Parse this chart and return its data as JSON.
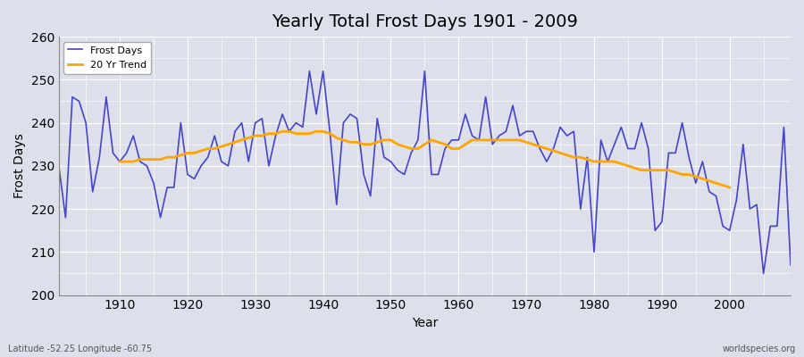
{
  "title": "Yearly Total Frost Days 1901 - 2009",
  "xlabel": "Year",
  "ylabel": "Frost Days",
  "subtitle": "Latitude -52.25 Longitude -60.75",
  "watermark": "worldspecies.org",
  "ylim": [
    200,
    260
  ],
  "xlim": [
    1901,
    2009
  ],
  "legend_labels": [
    "Frost Days",
    "20 Yr Trend"
  ],
  "frost_color": "#4444cc",
  "trend_color": "#FFA500",
  "background_color": "#dde0ea",
  "grid_color": "#ffffff",
  "years": [
    1901,
    1902,
    1903,
    1904,
    1905,
    1906,
    1907,
    1908,
    1909,
    1910,
    1911,
    1912,
    1913,
    1914,
    1915,
    1916,
    1917,
    1918,
    1919,
    1920,
    1921,
    1922,
    1923,
    1924,
    1925,
    1926,
    1927,
    1928,
    1929,
    1930,
    1931,
    1932,
    1933,
    1934,
    1935,
    1936,
    1937,
    1938,
    1939,
    1940,
    1941,
    1942,
    1943,
    1944,
    1945,
    1946,
    1947,
    1948,
    1949,
    1950,
    1951,
    1952,
    1953,
    1954,
    1955,
    1956,
    1957,
    1958,
    1959,
    1960,
    1961,
    1962,
    1963,
    1964,
    1965,
    1966,
    1967,
    1968,
    1969,
    1970,
    1971,
    1972,
    1973,
    1974,
    1975,
    1976,
    1977,
    1978,
    1979,
    1980,
    1981,
    1982,
    1983,
    1984,
    1985,
    1986,
    1987,
    1988,
    1989,
    1990,
    1991,
    1992,
    1993,
    1994,
    1995,
    1996,
    1997,
    1998,
    1999,
    2000,
    2001,
    2002,
    2003,
    2004,
    2005,
    2006,
    2007,
    2008,
    2009
  ],
  "frost_days": [
    230,
    218,
    246,
    245,
    240,
    224,
    232,
    246,
    233,
    231,
    233,
    237,
    231,
    230,
    226,
    218,
    225,
    225,
    240,
    228,
    227,
    230,
    232,
    237,
    231,
    230,
    238,
    240,
    231,
    240,
    241,
    230,
    237,
    242,
    238,
    240,
    239,
    252,
    242,
    252,
    238,
    221,
    240,
    242,
    241,
    228,
    223,
    241,
    232,
    231,
    229,
    228,
    233,
    236,
    252,
    228,
    228,
    234,
    236,
    236,
    242,
    237,
    236,
    246,
    235,
    237,
    238,
    244,
    237,
    238,
    238,
    234,
    231,
    234,
    239,
    237,
    238,
    220,
    232,
    210,
    236,
    231,
    235,
    239,
    234,
    234,
    240,
    234,
    215,
    217,
    233,
    233,
    240,
    232,
    226,
    231,
    224,
    223,
    216,
    215,
    222,
    235,
    220,
    221,
    205,
    216,
    216,
    239,
    207
  ],
  "trend_years": [
    1910,
    1911,
    1912,
    1913,
    1914,
    1915,
    1916,
    1917,
    1918,
    1919,
    1920,
    1921,
    1922,
    1923,
    1924,
    1925,
    1926,
    1927,
    1928,
    1929,
    1930,
    1931,
    1932,
    1933,
    1934,
    1935,
    1936,
    1937,
    1938,
    1939,
    1940,
    1941,
    1942,
    1943,
    1944,
    1945,
    1946,
    1947,
    1948,
    1949,
    1950,
    1951,
    1952,
    1953,
    1954,
    1955,
    1956,
    1957,
    1958,
    1959,
    1960,
    1961,
    1962,
    1963,
    1964,
    1965,
    1966,
    1967,
    1968,
    1969,
    1970,
    1971,
    1972,
    1973,
    1974,
    1975,
    1976,
    1977,
    1978,
    1979,
    1980,
    1981,
    1982,
    1983,
    1984,
    1985,
    1986,
    1987,
    1988,
    1989,
    1990,
    1991,
    1992,
    1993,
    1994,
    1995,
    1996,
    1997,
    1998,
    1999,
    2000
  ],
  "trend_values": [
    231.0,
    231.0,
    231.0,
    231.5,
    231.5,
    231.5,
    231.5,
    232.0,
    232.0,
    232.5,
    233.0,
    233.0,
    233.5,
    234.0,
    234.0,
    234.5,
    235.0,
    235.5,
    236.0,
    236.5,
    237.0,
    237.0,
    237.5,
    237.5,
    238.0,
    238.0,
    237.5,
    237.5,
    237.5,
    238.0,
    238.0,
    237.5,
    236.5,
    236.0,
    235.5,
    235.5,
    235.0,
    235.0,
    235.5,
    236.0,
    236.0,
    235.0,
    234.5,
    234.0,
    234.0,
    235.0,
    236.0,
    235.5,
    235.0,
    234.0,
    234.0,
    235.0,
    236.0,
    236.0,
    236.0,
    236.0,
    236.0,
    236.0,
    236.0,
    236.0,
    235.5,
    235.0,
    234.5,
    234.0,
    233.5,
    233.0,
    232.5,
    232.0,
    232.0,
    231.5,
    231.0,
    231.0,
    231.0,
    231.0,
    230.5,
    230.0,
    229.5,
    229.0,
    229.0,
    229.0,
    229.0,
    229.0,
    228.5,
    228.0,
    228.0,
    227.5,
    227.0,
    226.5,
    226.0,
    225.5,
    225.0
  ]
}
